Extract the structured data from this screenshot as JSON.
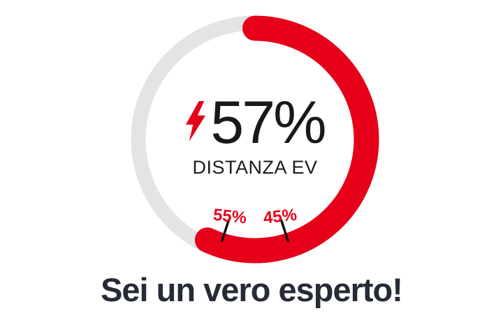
{
  "chart_data": {
    "type": "donut-gauge",
    "title": "",
    "value": 57,
    "min": 0,
    "max": 100,
    "value_label": "57%",
    "center_label": "DISTANZA EV",
    "start_angle_deg": 0,
    "direction": "clockwise",
    "markers": [
      {
        "label": "55%",
        "value": 55
      },
      {
        "label": "45%",
        "value": 45
      }
    ],
    "colors": {
      "progress": "#e60019",
      "track": "#e4e4e6",
      "value_text": "#191919",
      "center_label_text": "#1b1b1b",
      "marker_text": "#e60019",
      "marker_tick": "#111111",
      "bolt": "#e60019"
    }
  },
  "center": {
    "icon": "lightning-bolt"
  },
  "footer": {
    "message": "Sei un vero esperto!",
    "color": "#262b36"
  },
  "page": {
    "background": "#ffffff"
  }
}
